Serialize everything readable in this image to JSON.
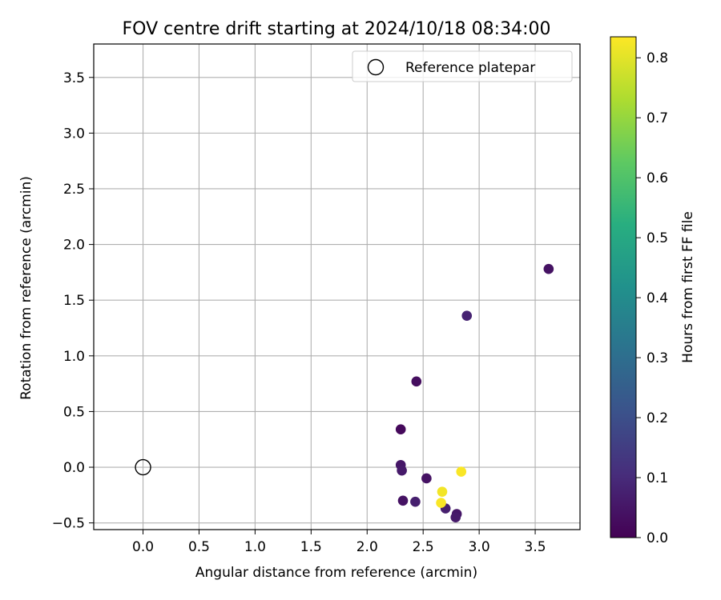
{
  "chart_data": {
    "type": "scatter",
    "title": "FOV centre drift starting at 2024/10/18 08:34:00",
    "xlabel": "Angular distance from reference (arcmin)",
    "ylabel": "Rotation from reference (arcmin)",
    "xlim": [
      -0.44,
      3.9
    ],
    "ylim": [
      -0.56,
      3.8
    ],
    "xticks": [
      0.0,
      0.5,
      1.0,
      1.5,
      2.0,
      2.5,
      3.0,
      3.5
    ],
    "yticks": [
      -0.5,
      0.0,
      0.5,
      1.0,
      1.5,
      2.0,
      2.5,
      3.0,
      3.5
    ],
    "grid": true,
    "legend": {
      "placement": "top-right",
      "entries": [
        "Reference platepar"
      ]
    },
    "reference_point": {
      "name": "Reference platepar",
      "x": 0.0,
      "y": 0.0
    },
    "colorbar": {
      "label": "Hours from first FF file",
      "range": [
        0.0,
        0.835
      ],
      "ticks": [
        0.0,
        0.1,
        0.2,
        0.3,
        0.4,
        0.5,
        0.6,
        0.7,
        0.8
      ],
      "colormap": "viridis"
    },
    "points": [
      {
        "x": 3.62,
        "y": 1.78,
        "c": 0.04
      },
      {
        "x": 2.89,
        "y": 1.36,
        "c": 0.08
      },
      {
        "x": 2.44,
        "y": 0.77,
        "c": 0.03
      },
      {
        "x": 2.3,
        "y": 0.34,
        "c": 0.02
      },
      {
        "x": 2.3,
        "y": 0.02,
        "c": 0.05
      },
      {
        "x": 2.31,
        "y": -0.03,
        "c": 0.06
      },
      {
        "x": 2.53,
        "y": -0.1,
        "c": 0.04
      },
      {
        "x": 2.32,
        "y": -0.3,
        "c": 0.04
      },
      {
        "x": 2.43,
        "y": -0.31,
        "c": 0.07
      },
      {
        "x": 2.7,
        "y": -0.37,
        "c": 0.07
      },
      {
        "x": 2.8,
        "y": -0.42,
        "c": 0.05
      },
      {
        "x": 2.79,
        "y": -0.45,
        "c": 0.06
      },
      {
        "x": 2.84,
        "y": -0.04,
        "c": 0.83
      },
      {
        "x": 2.67,
        "y": -0.22,
        "c": 0.82
      },
      {
        "x": 2.66,
        "y": -0.32,
        "c": 0.83
      }
    ]
  }
}
